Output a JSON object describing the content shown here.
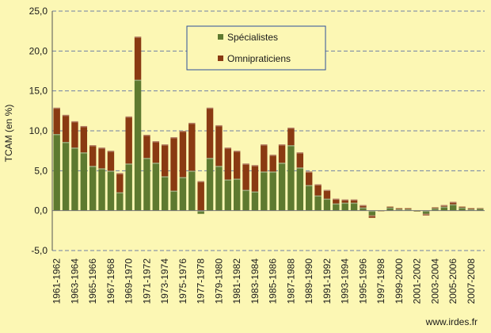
{
  "chart_data": {
    "type": "bar",
    "stacked": true,
    "ylabel": "TCAM (en %)",
    "xlabel": "",
    "ylim": [
      -5,
      25
    ],
    "yticks": [
      "-5,0",
      "0,0",
      "5,0",
      "10,0",
      "15,0",
      "20,0",
      "25,0"
    ],
    "ytick_values": [
      -5,
      0,
      5,
      10,
      15,
      20,
      25
    ],
    "grid": true,
    "legend_position": "top-center",
    "categories": [
      "1961-1962",
      "1962-1963",
      "1963-1964",
      "1964-1965",
      "1965-1966",
      "1966-1967",
      "1967-1968",
      "1968-1969",
      "1969-1970",
      "1970-1971",
      "1971-1972",
      "1972-1973",
      "1973-1974",
      "1974-1975",
      "1975-1976",
      "1976-1977",
      "1977-1978",
      "1978-1979",
      "1979-1980",
      "1980-1981",
      "1981-1982",
      "1982-1983",
      "1983-1984",
      "1984-1985",
      "1985-1986",
      "1986-1987",
      "1987-1988",
      "1988-1989",
      "1989-1990",
      "1990-1991",
      "1991-1992",
      "1992-1993",
      "1993-1994",
      "1994-1995",
      "1995-1996",
      "1996-1997",
      "1997-1998",
      "1998-1999",
      "1999-2000",
      "2000-2001",
      "2001-2002",
      "2002-2003",
      "2003-2004",
      "2004-2005",
      "2005-2006",
      "2006-2007",
      "2007-2008",
      "2008-2009"
    ],
    "tick_labels": [
      "1961-1962",
      "1963-1964",
      "1965-1966",
      "1967-1968",
      "1969-1970",
      "1971-1972",
      "1973-1974",
      "1975-1976",
      "1977-1978",
      "1979-1980",
      "1981-1982",
      "1983-1984",
      "1985-1986",
      "1987-1988",
      "1989-1990",
      "1991-1992",
      "1993-1994",
      "1995-1996",
      "1997-1998",
      "1999-2000",
      "2001-2002",
      "2003-2004",
      "2005-2006",
      "2007-2008"
    ],
    "series": [
      {
        "name": "Spécialistes",
        "color": "#5e7a30",
        "values": [
          9.6,
          8.6,
          7.9,
          7.3,
          5.6,
          5.3,
          5.0,
          2.3,
          5.9,
          16.4,
          6.6,
          6.0,
          4.3,
          2.5,
          4.2,
          5.0,
          -0.4,
          6.6,
          5.6,
          3.9,
          4.0,
          2.6,
          2.4,
          4.9,
          4.9,
          6.0,
          8.2,
          5.4,
          3.2,
          1.9,
          1.5,
          0.9,
          1.0,
          1.0,
          0.4,
          -0.6,
          0.0,
          0.4,
          0.2,
          0.2,
          -0.1,
          -0.4,
          0.3,
          0.5,
          0.8,
          0.4,
          0.2,
          0.3
        ]
      },
      {
        "name": "Omnipraticiens",
        "color": "#8a3a12",
        "values": [
          3.3,
          3.4,
          3.3,
          3.3,
          2.6,
          2.6,
          2.5,
          2.4,
          5.9,
          5.4,
          2.9,
          2.7,
          4.0,
          6.7,
          5.8,
          6.0,
          3.7,
          6.3,
          5.1,
          4.0,
          3.5,
          3.3,
          3.3,
          3.4,
          2.1,
          2.3,
          2.2,
          1.9,
          1.7,
          1.4,
          1.1,
          0.6,
          0.4,
          0.4,
          0.3,
          -0.3,
          0.0,
          0.1,
          0.1,
          0.1,
          0.0,
          -0.2,
          0.1,
          0.2,
          0.3,
          0.1,
          0.1,
          0.0
        ]
      }
    ]
  },
  "source": "www.irdes.fr"
}
